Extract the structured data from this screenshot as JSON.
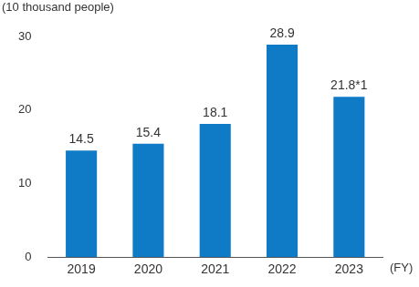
{
  "chart_data": {
    "type": "bar",
    "y_label": "(10 thousand people)",
    "x_label": "(FY)",
    "categories": [
      "2019",
      "2020",
      "2021",
      "2022",
      "2023"
    ],
    "values": [
      14.5,
      15.4,
      18.1,
      28.9,
      21.8
    ],
    "value_labels": [
      "14.5",
      "15.4",
      "18.1",
      "28.9",
      "21.8*1"
    ],
    "data_labels": true,
    "color": "#0f7ac6",
    "ylim": [
      0,
      30
    ],
    "yticks": [
      0,
      10,
      20,
      30
    ],
    "grid": false
  }
}
